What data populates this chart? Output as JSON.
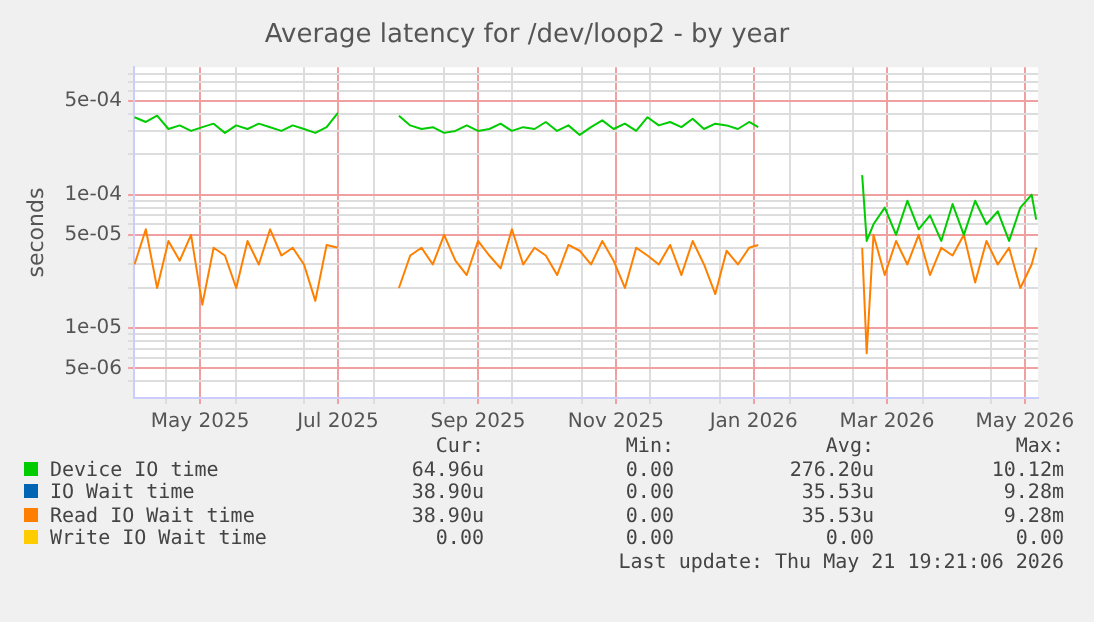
{
  "chart_data": {
    "type": "line",
    "title": "Average latency for /dev/loop2 - by year",
    "ylabel": "seconds",
    "log": "y",
    "grid": true,
    "legend": "bottom",
    "xlim": [
      "2025-04-16T19:21",
      "2026-05-21T19:21"
    ],
    "xticks": [
      {
        "value": "2025-05-01",
        "label": null
      },
      {
        "value": "2025-05-16",
        "label": "May 2025"
      },
      {
        "value": "2025-06-01",
        "label": null
      },
      {
        "value": "2025-07-01",
        "label": null
      },
      {
        "value": "2025-07-16",
        "label": "Jul 2025"
      },
      {
        "value": "2025-08-01",
        "label": null
      },
      {
        "value": "2025-09-01",
        "label": null
      },
      {
        "value": "2025-09-16",
        "label": "Sep 2025"
      },
      {
        "value": "2025-10-01",
        "label": null
      },
      {
        "value": "2025-11-01",
        "label": null
      },
      {
        "value": "2025-11-16",
        "label": "Nov 2025"
      },
      {
        "value": "2025-12-01",
        "label": null
      },
      {
        "value": "2026-01-01",
        "label": null
      },
      {
        "value": "2026-01-16",
        "label": "Jan 2026"
      },
      {
        "value": "2026-02-01",
        "label": null
      },
      {
        "value": "2026-03-01",
        "label": null
      },
      {
        "value": "2026-03-16",
        "label": "Mar 2026"
      },
      {
        "value": "2026-04-01",
        "label": null
      },
      {
        "value": "2026-05-01",
        "label": null
      },
      {
        "value": "2026-05-16",
        "label": "May 2026"
      }
    ],
    "ylim": [
      3e-06,
      0.0009
    ],
    "yticks": [
      {
        "value": 4e-06,
        "label": null
      },
      {
        "value": 5e-06,
        "label": "5e-06"
      },
      {
        "value": 6e-06,
        "label": null
      },
      {
        "value": 7e-06,
        "label": null
      },
      {
        "value": 8e-06,
        "label": null
      },
      {
        "value": 9e-06,
        "label": null
      },
      {
        "value": 1e-05,
        "label": "1e-05"
      },
      {
        "value": 2e-05,
        "label": null
      },
      {
        "value": 3e-05,
        "label": null
      },
      {
        "value": 4e-05,
        "label": null
      },
      {
        "value": 5e-05,
        "label": "5e-05"
      },
      {
        "value": 6e-05,
        "label": null
      },
      {
        "value": 7e-05,
        "label": null
      },
      {
        "value": 8e-05,
        "label": null
      },
      {
        "value": 9e-05,
        "label": null
      },
      {
        "value": 0.0001,
        "label": "1e-04"
      },
      {
        "value": 0.0002,
        "label": null
      },
      {
        "value": 0.0003,
        "label": null
      },
      {
        "value": 0.0004,
        "label": null
      },
      {
        "value": 0.0005,
        "label": "5e-04"
      },
      {
        "value": 0.0006,
        "label": null
      },
      {
        "value": 0.0007,
        "label": null
      },
      {
        "value": 0.0008,
        "label": null
      }
    ],
    "x": [
      "2025-04-17",
      "2025-04-22",
      "2025-04-27",
      "2025-05-02",
      "2025-05-07",
      "2025-05-12",
      "2025-05-17",
      "2025-05-22",
      "2025-05-27",
      "2025-06-01",
      "2025-06-06",
      "2025-06-11",
      "2025-06-16",
      "2025-06-21",
      "2025-06-26",
      "2025-07-01",
      "2025-07-06",
      "2025-07-11",
      "2025-07-16",
      "2025-07-30",
      "2025-08-12",
      "2025-08-17",
      "2025-08-22",
      "2025-08-27",
      "2025-09-01",
      "2025-09-06",
      "2025-09-11",
      "2025-09-16",
      "2025-09-21",
      "2025-09-26",
      "2025-10-01",
      "2025-10-06",
      "2025-10-11",
      "2025-10-16",
      "2025-10-21",
      "2025-10-26",
      "2025-10-31",
      "2025-11-05",
      "2025-11-10",
      "2025-11-15",
      "2025-11-20",
      "2025-11-25",
      "2025-11-30",
      "2025-12-05",
      "2025-12-10",
      "2025-12-15",
      "2025-12-20",
      "2025-12-25",
      "2025-12-30",
      "2026-01-04",
      "2026-01-09",
      "2026-01-14",
      "2026-01-18",
      "2026-02-10",
      "2026-03-05",
      "2026-03-07",
      "2026-03-10",
      "2026-03-15",
      "2026-03-20",
      "2026-03-25",
      "2026-03-30",
      "2026-04-04",
      "2026-04-09",
      "2026-04-14",
      "2026-04-19",
      "2026-04-24",
      "2026-04-29",
      "2026-05-04",
      "2026-05-09",
      "2026-05-14",
      "2026-05-19",
      "2026-05-21"
    ],
    "series": [
      {
        "name": "Device IO time",
        "color": "#00cc00",
        "values": [
          0.00038,
          0.00035,
          0.00039,
          0.00031,
          0.00033,
          0.0003,
          0.00032,
          0.00034,
          0.00029,
          0.00033,
          0.00031,
          0.00034,
          0.00032,
          0.0003,
          0.00033,
          0.00031,
          0.00029,
          0.00032,
          0.00041,
          null,
          0.00039,
          0.00033,
          0.00031,
          0.00032,
          0.00029,
          0.0003,
          0.00033,
          0.0003,
          0.00031,
          0.00034,
          0.0003,
          0.00032,
          0.00031,
          0.00035,
          0.0003,
          0.00033,
          0.00028,
          0.00032,
          0.00036,
          0.00031,
          0.00034,
          0.0003,
          0.00038,
          0.00033,
          0.00035,
          0.00032,
          0.00037,
          0.00031,
          0.00034,
          0.00033,
          0.00031,
          0.00035,
          0.00032,
          null,
          0.00014,
          4.5e-05,
          6e-05,
          8e-05,
          5e-05,
          9e-05,
          5.5e-05,
          7e-05,
          4.5e-05,
          8.5e-05,
          5e-05,
          9e-05,
          6e-05,
          7.5e-05,
          4.5e-05,
          8e-05,
          0.0001,
          6.5e-05
        ]
      },
      {
        "name": "IO Wait time",
        "color": "#0066b3",
        "values": [
          null,
          null,
          null,
          null,
          null,
          null,
          null,
          null,
          null,
          null,
          null,
          null,
          null,
          null,
          null,
          null,
          null,
          null,
          null,
          null,
          null,
          null,
          null,
          null,
          null,
          null,
          null,
          null,
          null,
          null,
          null,
          null,
          null,
          null,
          null,
          null,
          null,
          null,
          null,
          null,
          null,
          null,
          null,
          null,
          null,
          null,
          null,
          null,
          null,
          null,
          null,
          null,
          null,
          null,
          null,
          null,
          null,
          null,
          null,
          null,
          null,
          null,
          null,
          null,
          null,
          null,
          null,
          null,
          null,
          null,
          null,
          null
        ]
      },
      {
        "name": "Read IO Wait time",
        "color": "#ff8000",
        "values": [
          3e-05,
          5.5e-05,
          2e-05,
          4.5e-05,
          3.2e-05,
          5e-05,
          1.5e-05,
          4e-05,
          3.5e-05,
          2e-05,
          4.5e-05,
          3e-05,
          5.5e-05,
          3.5e-05,
          4e-05,
          3e-05,
          1.6e-05,
          4.2e-05,
          4e-05,
          null,
          2e-05,
          3.5e-05,
          4e-05,
          3e-05,
          5e-05,
          3.2e-05,
          2.5e-05,
          4.5e-05,
          3.5e-05,
          2.8e-05,
          5.5e-05,
          3e-05,
          4e-05,
          3.5e-05,
          2.5e-05,
          4.2e-05,
          3.8e-05,
          3e-05,
          4.5e-05,
          3.2e-05,
          2e-05,
          4e-05,
          3.5e-05,
          3e-05,
          4.2e-05,
          2.5e-05,
          4.5e-05,
          3e-05,
          1.8e-05,
          3.8e-05,
          3e-05,
          4e-05,
          4.2e-05,
          null,
          4e-05,
          6.5e-06,
          5e-05,
          2.5e-05,
          4.5e-05,
          3e-05,
          5e-05,
          2.5e-05,
          4e-05,
          3.5e-05,
          5e-05,
          2.2e-05,
          4.5e-05,
          3e-05,
          4e-05,
          2e-05,
          3e-05,
          4e-05
        ]
      },
      {
        "name": "Write IO Wait time",
        "color": "#ffcc00",
        "values": [
          null,
          null,
          null,
          null,
          null,
          null,
          null,
          null,
          null,
          null,
          null,
          null,
          null,
          null,
          null,
          null,
          null,
          null,
          null,
          null,
          null,
          null,
          null,
          null,
          null,
          null,
          null,
          null,
          null,
          null,
          null,
          null,
          null,
          null,
          null,
          null,
          null,
          null,
          null,
          null,
          null,
          null,
          null,
          null,
          null,
          null,
          null,
          null,
          null,
          null,
          null,
          null,
          null,
          null,
          null,
          null,
          null,
          null,
          null,
          null,
          null,
          null,
          null,
          null,
          null,
          null,
          null,
          null,
          null,
          null,
          null,
          null
        ]
      }
    ],
    "annotations": [
      "Cur:",
      "Min:",
      "Avg:",
      "Max:",
      "64.96u",
      "0.00",
      "276.20u",
      "10.12m",
      "38.90u",
      "0.00",
      "35.53u",
      "9.28m",
      "38.90u",
      "0.00",
      "35.53u",
      "9.28m",
      "0.00",
      "0.00",
      "0.00",
      "0.00",
      "Last update: Thu May 21 19:21:06 2026"
    ]
  }
}
